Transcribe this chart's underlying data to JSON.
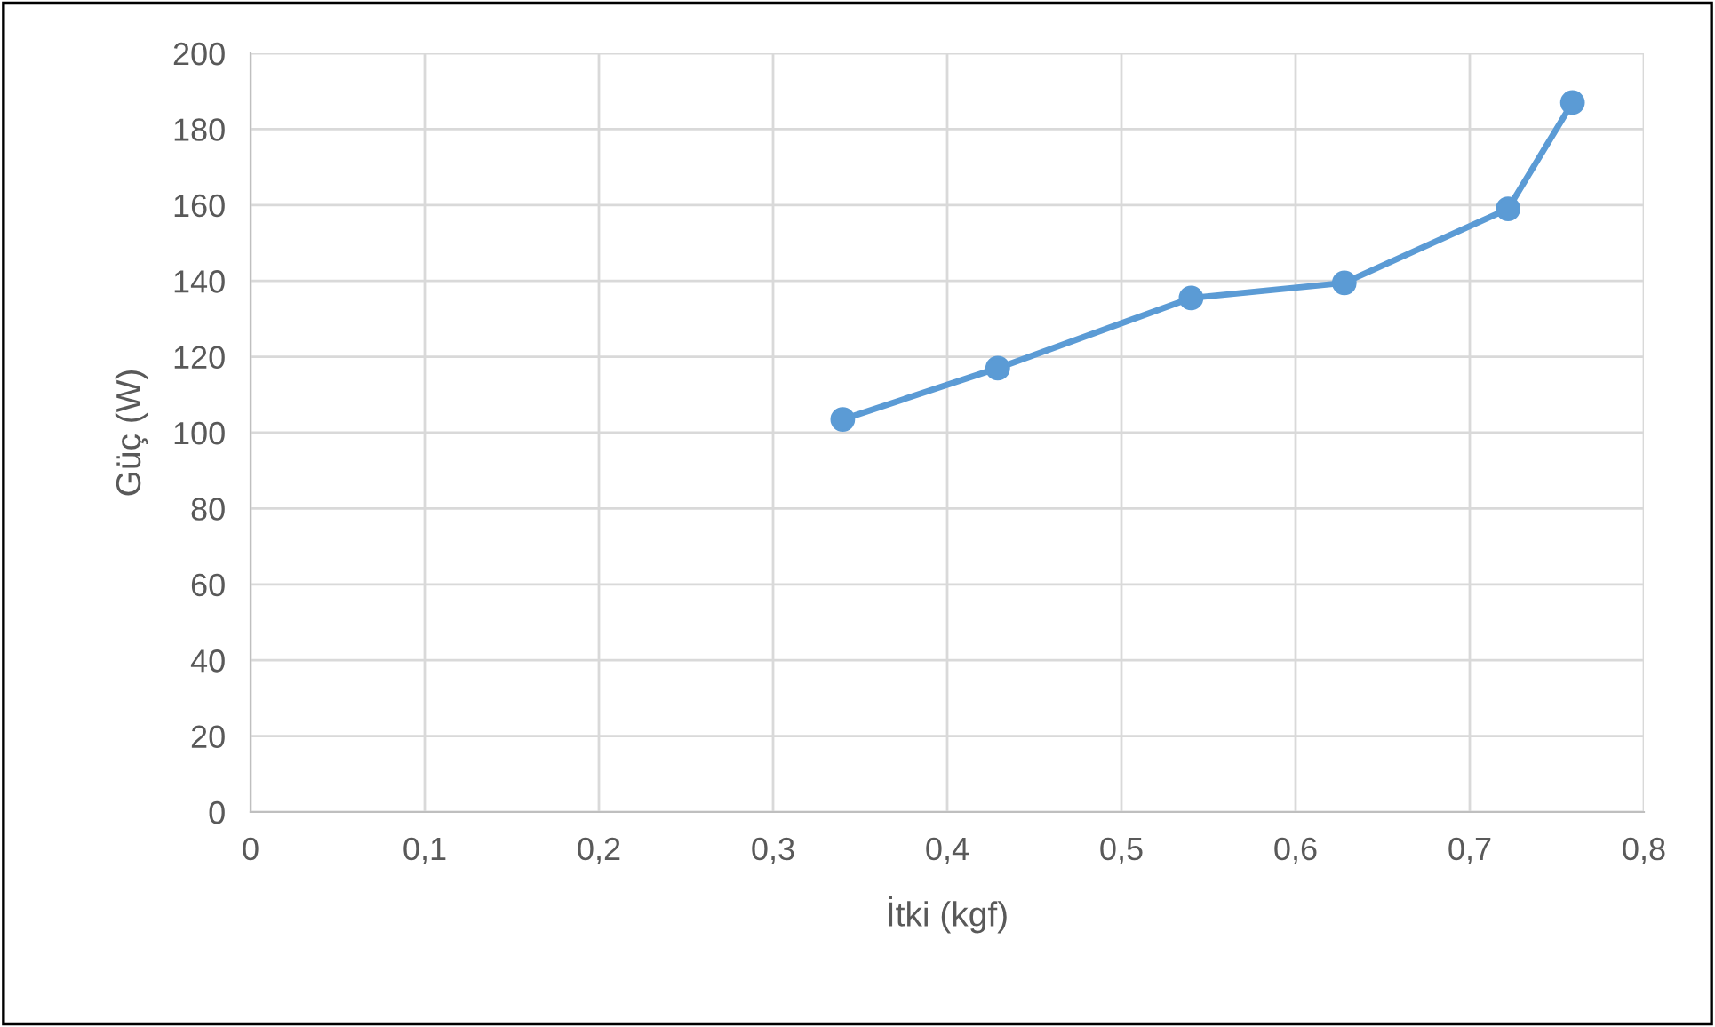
{
  "chart_data": {
    "type": "line",
    "xlabel": "İtki (kgf)",
    "ylabel": "Güç (W)",
    "x": [
      0.34,
      0.429,
      0.54,
      0.628,
      0.722,
      0.759
    ],
    "series": [
      {
        "color": "#5b9bd5",
        "values": [
          103.5,
          117,
          135.5,
          139.5,
          159,
          187
        ]
      }
    ],
    "xlim": [
      0,
      0.8
    ],
    "xticks": [
      0,
      {
        "value": 0.1,
        "label": "0,1"
      },
      {
        "value": 0.2,
        "label": "0,2"
      },
      {
        "value": 0.3,
        "label": "0,3"
      },
      {
        "value": 0.4,
        "label": "0,4"
      },
      {
        "value": 0.5,
        "label": "0,5"
      },
      {
        "value": 0.6,
        "label": "0,6"
      },
      {
        "value": 0.7,
        "label": "0,7"
      },
      {
        "value": 0.8,
        "label": "0,8"
      }
    ],
    "ylim": [
      0,
      200
    ],
    "yticks": [
      0,
      20,
      40,
      60,
      80,
      100,
      120,
      140,
      160,
      180,
      200
    ],
    "grid": true,
    "marker": "circle",
    "line_style": "solid"
  }
}
